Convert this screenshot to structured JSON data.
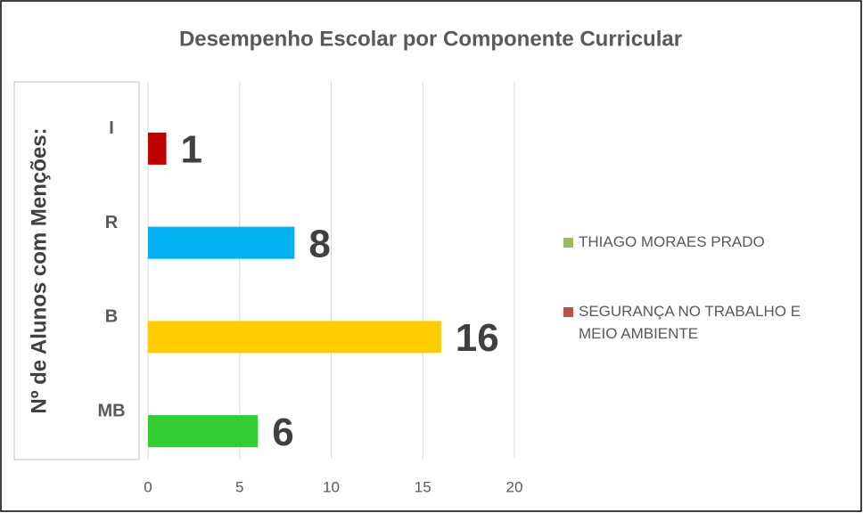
{
  "chart_data": {
    "type": "bar",
    "orientation": "horizontal",
    "title": "Desempenho Escolar por Componente Curricular",
    "y_axis_label": "Nº de Alunos com Menções:",
    "categories": [
      "MB",
      "B",
      "R",
      "I"
    ],
    "values": [
      6,
      16,
      8,
      1
    ],
    "colors": [
      "#33cc33",
      "#ffcc00",
      "#00b0f0",
      "#c00000"
    ],
    "xlim": [
      0,
      20
    ],
    "xticks": [
      0,
      5,
      10,
      15,
      20
    ],
    "grid": true,
    "legend_position": "right",
    "legend": [
      {
        "name": "THIAGO MORAES PRADO",
        "color": "#9bbb59"
      },
      {
        "name": "SEGURANÇA NO TRABALHO E MEIO AMBIENTE",
        "color": "#c0504d"
      }
    ]
  }
}
